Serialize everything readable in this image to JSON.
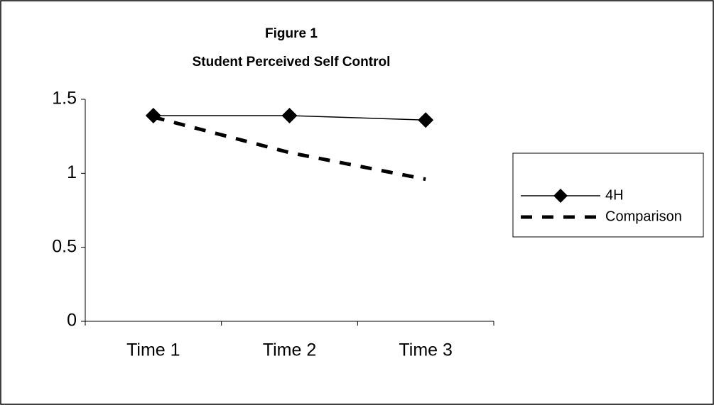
{
  "chart_data": {
    "type": "line",
    "title": "Figure 1",
    "subtitle": "Student Perceived Self Control",
    "categories": [
      "Time 1",
      "Time 2",
      "Time 3"
    ],
    "series": [
      {
        "name": "4H",
        "color": "#000000",
        "values": [
          1.39,
          1.39,
          1.36
        ],
        "marker": "diamond",
        "line_style": "solid"
      },
      {
        "name": "Comparison",
        "color": "#000000",
        "values": [
          1.38,
          1.14,
          0.96
        ],
        "line_style": "dashed"
      }
    ],
    "ylim": [
      0,
      1.5
    ],
    "yticks": [
      0,
      0.5,
      1,
      1.5
    ],
    "grid": false,
    "legend": "right"
  }
}
